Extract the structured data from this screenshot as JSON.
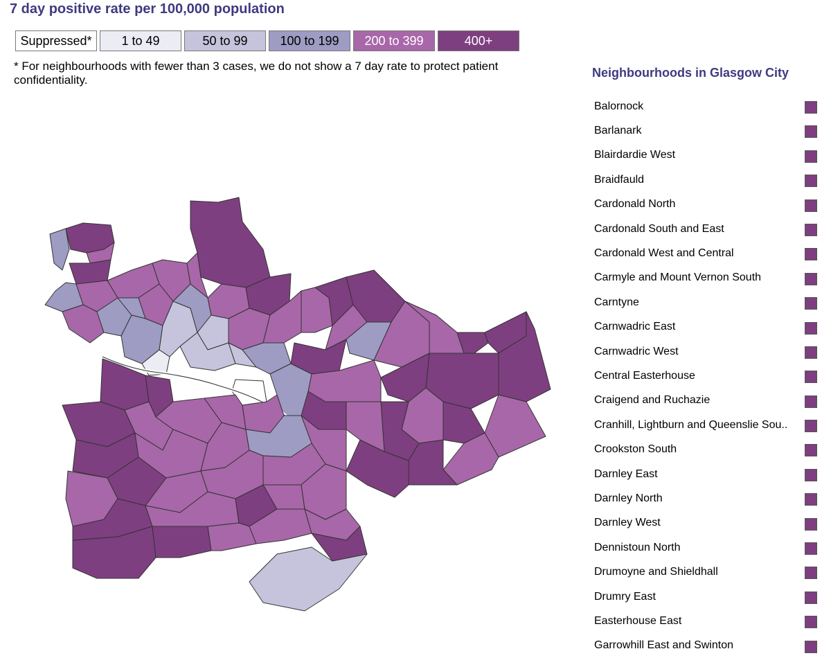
{
  "title": "7 day positive rate per 100,000 population",
  "legend": [
    {
      "label": "Suppressed*",
      "color": "#ffffff",
      "text_color": "#000000"
    },
    {
      "label": "1 to 49",
      "color": "#ececf4",
      "text_color": "#000000"
    },
    {
      "label": "50 to 99",
      "color": "#c5c4dc",
      "text_color": "#000000"
    },
    {
      "label": "100 to 199",
      "color": "#9e9cc3",
      "text_color": "#000000"
    },
    {
      "label": "200 to 399",
      "color": "#a867a8",
      "text_color": "#ffffff"
    },
    {
      "label": "400+",
      "color": "#7e3f80",
      "text_color": "#ffffff"
    }
  ],
  "note": "* For neighbourhoods with fewer than 3 cases, we do not show a 7 day rate to protect patient confidentiality.",
  "sidebar": {
    "title": "Neighbourhoods in Glasgow City",
    "items": [
      "Balornock",
      "Barlanark",
      "Blairdardie West",
      "Braidfauld",
      "Cardonald North",
      "Cardonald South and East",
      "Cardonald West and Central",
      "Carmyle and Mount Vernon South",
      "Carntyne",
      "Carnwadric East",
      "Carnwadric West",
      "Central Easterhouse",
      "Craigend and Ruchazie",
      "Cranhill, Lightburn and Queenslie Sou..",
      "Crookston South",
      "Darnley East",
      "Darnley North",
      "Darnley West",
      "Dennistoun North",
      "Drumoyne and Shieldhall",
      "Drumry East",
      "Easterhouse East",
      "Garrowhill East and Swinton"
    ],
    "swatch_color": "#7e3f80"
  }
}
